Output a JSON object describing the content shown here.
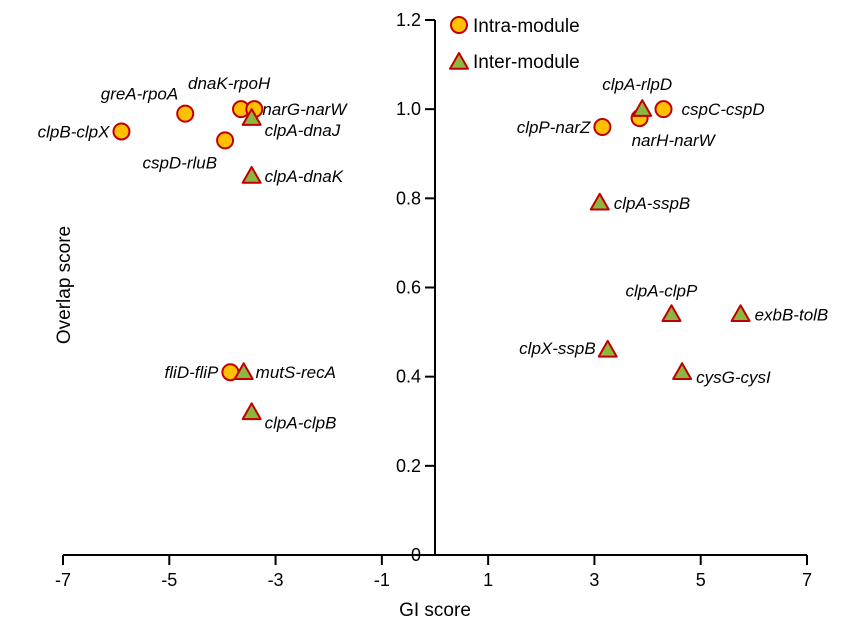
{
  "chart_data": {
    "type": "scatter",
    "title": "",
    "xlabel": "GI score",
    "ylabel": "Overlap score",
    "xlim": [
      -7,
      7
    ],
    "ylim": [
      0,
      1.2
    ],
    "x_ticks": [
      -7,
      -5,
      -3,
      -1,
      1,
      3,
      5,
      7
    ],
    "y_ticks": [
      0,
      0.2,
      0.4,
      0.6,
      0.8,
      1.0,
      1.2
    ],
    "x_tick_labels": [
      "-7",
      "-5",
      "-3",
      "-1",
      "1",
      "3",
      "5",
      "7"
    ],
    "y_tick_labels": [
      "0",
      "0.2",
      "0.4",
      "0.6",
      "0.8",
      "1.0",
      "1.2"
    ],
    "grid": false,
    "legend_position": "top-center",
    "colors": {
      "marker_fill_circle": "#FFC000",
      "marker_fill_triangle": "#8DB640",
      "marker_stroke": "#C00000"
    },
    "series": [
      {
        "name": "Intra-module",
        "marker": "circle",
        "points": [
          {
            "x": -5.9,
            "y": 0.95,
            "label": "clpB-clpX"
          },
          {
            "x": -4.7,
            "y": 0.99,
            "label": "greA-rpoA"
          },
          {
            "x": -3.95,
            "y": 0.93,
            "label": "cspD-rluB"
          },
          {
            "x": -3.65,
            "y": 1.0,
            "label": "dnaK-rpoH"
          },
          {
            "x": -3.4,
            "y": 1.0,
            "label": "narG-narW"
          },
          {
            "x": -3.85,
            "y": 0.41,
            "label": "fliD-fliP"
          },
          {
            "x": 3.15,
            "y": 0.96,
            "label": "clpP-narZ"
          },
          {
            "x": 3.85,
            "y": 0.98,
            "label": "narH-narW"
          },
          {
            "x": 4.3,
            "y": 1.0,
            "label": "cspC-cspD"
          }
        ]
      },
      {
        "name": "Inter-module",
        "marker": "triangle",
        "points": [
          {
            "x": -3.45,
            "y": 0.98,
            "label": "clpA-dnaJ"
          },
          {
            "x": -3.45,
            "y": 0.85,
            "label": "clpA-dnaK"
          },
          {
            "x": -3.6,
            "y": 0.41,
            "label": "mutS-recA"
          },
          {
            "x": -3.45,
            "y": 0.32,
            "label": "clpA-clpB"
          },
          {
            "x": 3.9,
            "y": 1.0,
            "label": "clpA-rlpD"
          },
          {
            "x": 3.1,
            "y": 0.79,
            "label": "clpA-sspB"
          },
          {
            "x": 4.45,
            "y": 0.54,
            "label": "clpA-clpP"
          },
          {
            "x": 5.75,
            "y": 0.54,
            "label": "exbB-tolB"
          },
          {
            "x": 3.25,
            "y": 0.46,
            "label": "clpX-sspB"
          },
          {
            "x": 4.65,
            "y": 0.41,
            "label": "cysG-cysI"
          }
        ]
      }
    ]
  }
}
